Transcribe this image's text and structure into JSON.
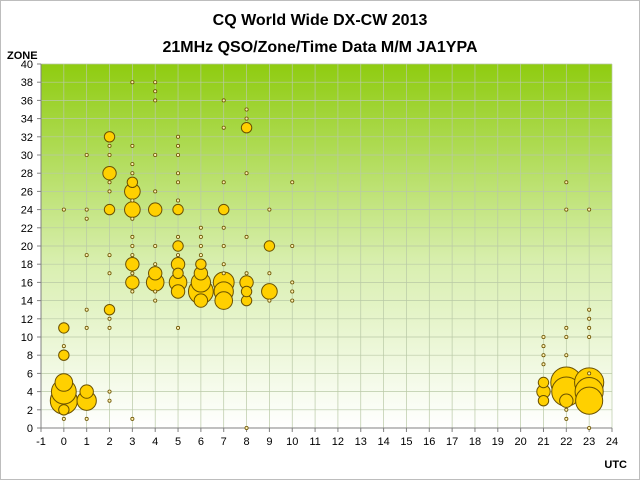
{
  "chart_data": {
    "type": "scatter",
    "title": "CQ World Wide DX-CW 2013",
    "subtitle": "21MHz QSO/Zone/Time Data M/M JA1YPA",
    "xlabel": "UTC",
    "ylabel": "ZONE",
    "xlim": [
      -1,
      24
    ],
    "ylim": [
      0,
      40
    ],
    "xticks": [
      -1,
      0,
      1,
      2,
      3,
      4,
      5,
      6,
      7,
      8,
      9,
      10,
      11,
      12,
      13,
      14,
      15,
      16,
      17,
      18,
      19,
      20,
      21,
      22,
      23,
      24
    ],
    "yticks": [
      0,
      2,
      4,
      6,
      8,
      10,
      12,
      14,
      16,
      18,
      20,
      22,
      24,
      26,
      28,
      30,
      32,
      34,
      36,
      38,
      40
    ],
    "grid": true,
    "legend": "none",
    "colors": {
      "marker_fill": "#ffd000",
      "marker_edge": "#6b5200",
      "plot_bg_top": "#8fcc10",
      "plot_bg_bottom": "#ffffff",
      "grid": "#b9c9a6"
    },
    "points": [
      {
        "x": 0,
        "y": 1,
        "size": 1
      },
      {
        "x": 0,
        "y": 2,
        "size": 2
      },
      {
        "x": 0,
        "y": 3,
        "size": 12
      },
      {
        "x": 0,
        "y": 4,
        "size": 10
      },
      {
        "x": 0,
        "y": 5,
        "size": 5
      },
      {
        "x": 0,
        "y": 8,
        "size": 2
      },
      {
        "x": 0,
        "y": 9,
        "size": 1
      },
      {
        "x": 0,
        "y": 11,
        "size": 2
      },
      {
        "x": 0,
        "y": 24,
        "size": 1
      },
      {
        "x": 1,
        "y": 1,
        "size": 1
      },
      {
        "x": 1,
        "y": 3,
        "size": 6
      },
      {
        "x": 1,
        "y": 4,
        "size": 3
      },
      {
        "x": 1,
        "y": 11,
        "size": 1
      },
      {
        "x": 1,
        "y": 13,
        "size": 1
      },
      {
        "x": 1,
        "y": 19,
        "size": 1
      },
      {
        "x": 1,
        "y": 23,
        "size": 1
      },
      {
        "x": 1,
        "y": 24,
        "size": 1
      },
      {
        "x": 1,
        "y": 30,
        "size": 1
      },
      {
        "x": 2,
        "y": 3,
        "size": 1
      },
      {
        "x": 2,
        "y": 4,
        "size": 1
      },
      {
        "x": 2,
        "y": 11,
        "size": 1
      },
      {
        "x": 2,
        "y": 12,
        "size": 1
      },
      {
        "x": 2,
        "y": 13,
        "size": 2
      },
      {
        "x": 2,
        "y": 17,
        "size": 1
      },
      {
        "x": 2,
        "y": 19,
        "size": 1
      },
      {
        "x": 2,
        "y": 24,
        "size": 2
      },
      {
        "x": 2,
        "y": 26,
        "size": 1
      },
      {
        "x": 2,
        "y": 27,
        "size": 1
      },
      {
        "x": 2,
        "y": 28,
        "size": 3
      },
      {
        "x": 2,
        "y": 30,
        "size": 1
      },
      {
        "x": 2,
        "y": 31,
        "size": 1
      },
      {
        "x": 2,
        "y": 32,
        "size": 2
      },
      {
        "x": 3,
        "y": 1,
        "size": 1
      },
      {
        "x": 3,
        "y": 15,
        "size": 1
      },
      {
        "x": 3,
        "y": 16,
        "size": 3
      },
      {
        "x": 3,
        "y": 17,
        "size": 1
      },
      {
        "x": 3,
        "y": 18,
        "size": 3
      },
      {
        "x": 3,
        "y": 19,
        "size": 1
      },
      {
        "x": 3,
        "y": 20,
        "size": 1
      },
      {
        "x": 3,
        "y": 21,
        "size": 1
      },
      {
        "x": 3,
        "y": 23,
        "size": 1
      },
      {
        "x": 3,
        "y": 24,
        "size": 4
      },
      {
        "x": 3,
        "y": 25,
        "size": 1
      },
      {
        "x": 3,
        "y": 26,
        "size": 4
      },
      {
        "x": 3,
        "y": 27,
        "size": 2
      },
      {
        "x": 3,
        "y": 28,
        "size": 1
      },
      {
        "x": 3,
        "y": 29,
        "size": 1
      },
      {
        "x": 3,
        "y": 31,
        "size": 1
      },
      {
        "x": 3,
        "y": 38,
        "size": 1
      },
      {
        "x": 4,
        "y": 14,
        "size": 1
      },
      {
        "x": 4,
        "y": 15,
        "size": 1
      },
      {
        "x": 4,
        "y": 16,
        "size": 5
      },
      {
        "x": 4,
        "y": 17,
        "size": 3
      },
      {
        "x": 4,
        "y": 18,
        "size": 1
      },
      {
        "x": 4,
        "y": 20,
        "size": 1
      },
      {
        "x": 4,
        "y": 24,
        "size": 3
      },
      {
        "x": 4,
        "y": 26,
        "size": 1
      },
      {
        "x": 4,
        "y": 30,
        "size": 1
      },
      {
        "x": 4,
        "y": 36,
        "size": 1
      },
      {
        "x": 4,
        "y": 37,
        "size": 1
      },
      {
        "x": 4,
        "y": 38,
        "size": 1
      },
      {
        "x": 5,
        "y": 11,
        "size": 1
      },
      {
        "x": 5,
        "y": 15,
        "size": 3
      },
      {
        "x": 5,
        "y": 16,
        "size": 5
      },
      {
        "x": 5,
        "y": 17,
        "size": 2
      },
      {
        "x": 5,
        "y": 18,
        "size": 3
      },
      {
        "x": 5,
        "y": 19,
        "size": 1
      },
      {
        "x": 5,
        "y": 20,
        "size": 2
      },
      {
        "x": 5,
        "y": 21,
        "size": 1
      },
      {
        "x": 5,
        "y": 24,
        "size": 2
      },
      {
        "x": 5,
        "y": 25,
        "size": 1
      },
      {
        "x": 5,
        "y": 27,
        "size": 1
      },
      {
        "x": 5,
        "y": 28,
        "size": 1
      },
      {
        "x": 5,
        "y": 30,
        "size": 1
      },
      {
        "x": 5,
        "y": 31,
        "size": 1
      },
      {
        "x": 5,
        "y": 32,
        "size": 1
      },
      {
        "x": 6,
        "y": 14,
        "size": 3
      },
      {
        "x": 6,
        "y": 15,
        "size": 10
      },
      {
        "x": 6,
        "y": 16,
        "size": 6
      },
      {
        "x": 6,
        "y": 17,
        "size": 3
      },
      {
        "x": 6,
        "y": 18,
        "size": 2
      },
      {
        "x": 6,
        "y": 19,
        "size": 1
      },
      {
        "x": 6,
        "y": 20,
        "size": 1
      },
      {
        "x": 6,
        "y": 21,
        "size": 1
      },
      {
        "x": 6,
        "y": 22,
        "size": 1
      },
      {
        "x": 7,
        "y": 14,
        "size": 5
      },
      {
        "x": 7,
        "y": 15,
        "size": 6
      },
      {
        "x": 7,
        "y": 16,
        "size": 7
      },
      {
        "x": 7,
        "y": 17,
        "size": 1
      },
      {
        "x": 7,
        "y": 18,
        "size": 1
      },
      {
        "x": 7,
        "y": 20,
        "size": 1
      },
      {
        "x": 7,
        "y": 22,
        "size": 1
      },
      {
        "x": 7,
        "y": 24,
        "size": 2
      },
      {
        "x": 7,
        "y": 27,
        "size": 1
      },
      {
        "x": 7,
        "y": 33,
        "size": 1
      },
      {
        "x": 7,
        "y": 36,
        "size": 1
      },
      {
        "x": 8,
        "y": 0,
        "size": 1
      },
      {
        "x": 8,
        "y": 14,
        "size": 2
      },
      {
        "x": 8,
        "y": 15,
        "size": 2
      },
      {
        "x": 8,
        "y": 16,
        "size": 3
      },
      {
        "x": 8,
        "y": 17,
        "size": 1
      },
      {
        "x": 8,
        "y": 21,
        "size": 1
      },
      {
        "x": 8,
        "y": 28,
        "size": 1
      },
      {
        "x": 8,
        "y": 33,
        "size": 2
      },
      {
        "x": 8,
        "y": 34,
        "size": 1
      },
      {
        "x": 8,
        "y": 35,
        "size": 1
      },
      {
        "x": 9,
        "y": 14,
        "size": 1
      },
      {
        "x": 9,
        "y": 15,
        "size": 4
      },
      {
        "x": 9,
        "y": 17,
        "size": 1
      },
      {
        "x": 9,
        "y": 20,
        "size": 2
      },
      {
        "x": 9,
        "y": 24,
        "size": 1
      },
      {
        "x": 10,
        "y": 14,
        "size": 1
      },
      {
        "x": 10,
        "y": 15,
        "size": 1
      },
      {
        "x": 10,
        "y": 16,
        "size": 1
      },
      {
        "x": 10,
        "y": 20,
        "size": 1
      },
      {
        "x": 10,
        "y": 27,
        "size": 1
      },
      {
        "x": 21,
        "y": 3,
        "size": 2
      },
      {
        "x": 21,
        "y": 4,
        "size": 3
      },
      {
        "x": 21,
        "y": 5,
        "size": 2
      },
      {
        "x": 21,
        "y": 7,
        "size": 1
      },
      {
        "x": 21,
        "y": 8,
        "size": 1
      },
      {
        "x": 21,
        "y": 9,
        "size": 1
      },
      {
        "x": 21,
        "y": 10,
        "size": 1
      },
      {
        "x": 22,
        "y": 1,
        "size": 1
      },
      {
        "x": 22,
        "y": 2,
        "size": 1
      },
      {
        "x": 22,
        "y": 3,
        "size": 3
      },
      {
        "x": 22,
        "y": 4,
        "size": 14
      },
      {
        "x": 22,
        "y": 5,
        "size": 16
      },
      {
        "x": 22,
        "y": 8,
        "size": 1
      },
      {
        "x": 22,
        "y": 10,
        "size": 1
      },
      {
        "x": 22,
        "y": 11,
        "size": 1
      },
      {
        "x": 22,
        "y": 24,
        "size": 1
      },
      {
        "x": 22,
        "y": 27,
        "size": 1
      },
      {
        "x": 23,
        "y": 0,
        "size": 1
      },
      {
        "x": 23,
        "y": 3,
        "size": 12
      },
      {
        "x": 23,
        "y": 4,
        "size": 13
      },
      {
        "x": 23,
        "y": 5,
        "size": 14
      },
      {
        "x": 23,
        "y": 6,
        "size": 1
      },
      {
        "x": 23,
        "y": 10,
        "size": 1
      },
      {
        "x": 23,
        "y": 11,
        "size": 1
      },
      {
        "x": 23,
        "y": 12,
        "size": 1
      },
      {
        "x": 23,
        "y": 13,
        "size": 1
      },
      {
        "x": 23,
        "y": 24,
        "size": 1
      }
    ]
  }
}
